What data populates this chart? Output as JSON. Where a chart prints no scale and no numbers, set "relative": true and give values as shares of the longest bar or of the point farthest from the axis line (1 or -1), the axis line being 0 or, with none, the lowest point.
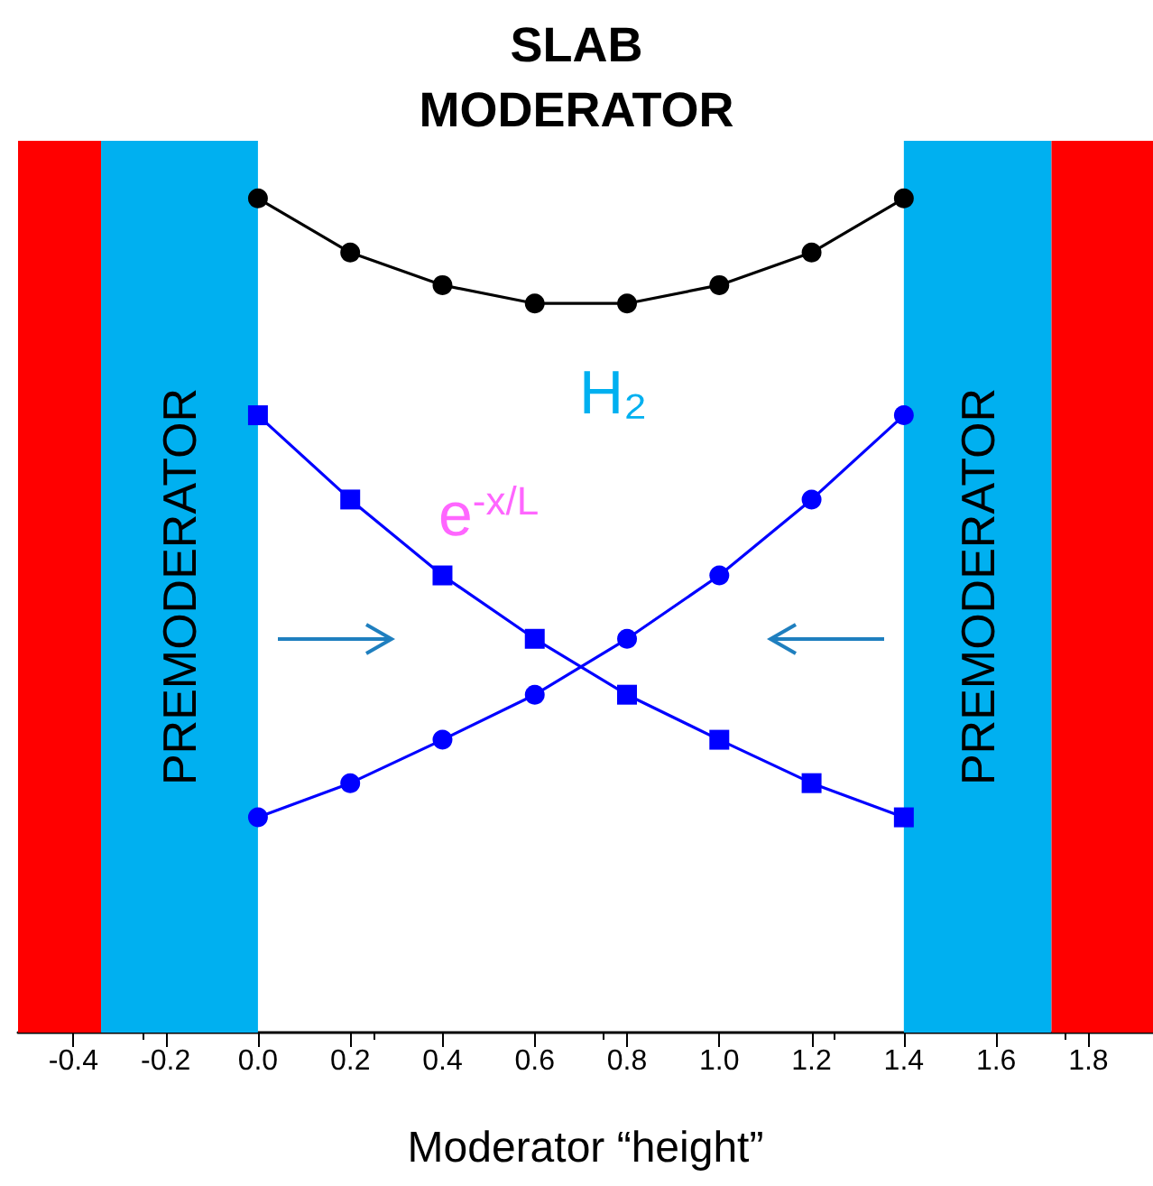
{
  "chart_data": {
    "type": "line",
    "title": "SLAB\nMODERATOR",
    "xlabel": "Moderator “height”",
    "relative": true,
    "x": [
      0.0,
      0.2,
      0.4,
      0.6,
      0.8,
      1.0,
      1.2,
      1.4
    ],
    "xlim": [
      -0.52,
      1.94
    ],
    "xticks": [
      {
        "value": -0.4,
        "label": "-0.4"
      },
      {
        "value": -0.2,
        "label": "-0.2"
      },
      {
        "value": 0,
        "label": "0.0"
      },
      {
        "value": 0.2,
        "label": "0.2"
      },
      {
        "value": 0.4,
        "label": "0.4"
      },
      {
        "value": 0.6,
        "label": "0.6"
      },
      {
        "value": 0.8,
        "label": "0.8"
      },
      {
        "value": 1,
        "label": "1.0"
      },
      {
        "value": 1.2,
        "label": "1.2"
      },
      {
        "value": 1.4,
        "label": "1.4"
      },
      {
        "value": 1.6,
        "label": "1.6"
      },
      {
        "value": 1.8,
        "label": "1.8"
      }
    ],
    "series": [
      {
        "color": "#000000",
        "marker": "circle",
        "values": [
          1,
          0.935,
          0.896,
          0.874,
          0.874,
          0.896,
          0.935,
          1
        ]
      },
      {
        "color": "#0000ff",
        "marker": "square",
        "values": [
          0.74,
          0.639,
          0.548,
          0.472,
          0.405,
          0.351,
          0.299,
          0.258
        ]
      },
      {
        "color": "#0000ff",
        "marker": "circle",
        "values": [
          0.258,
          0.299,
          0.351,
          0.405,
          0.472,
          0.548,
          0.639,
          0.74
        ]
      }
    ],
    "bands": [
      {
        "axis": "x",
        "from": -0.52,
        "to": -0.34,
        "color": "#ff0000"
      },
      {
        "axis": "x",
        "from": -0.34,
        "to": 0.0,
        "color": "#00b0f0",
        "label": "PREMODERATOR"
      },
      {
        "axis": "x",
        "from": 1.4,
        "to": 1.72,
        "color": "#00b0f0",
        "label": "PREMODERATOR"
      },
      {
        "axis": "x",
        "from": 1.72,
        "to": 1.94,
        "color": "#ff0000"
      }
    ],
    "annotations": [
      "H₂",
      "e$^{-x/L}$"
    ],
    "grid": false,
    "line_style": "solid"
  }
}
